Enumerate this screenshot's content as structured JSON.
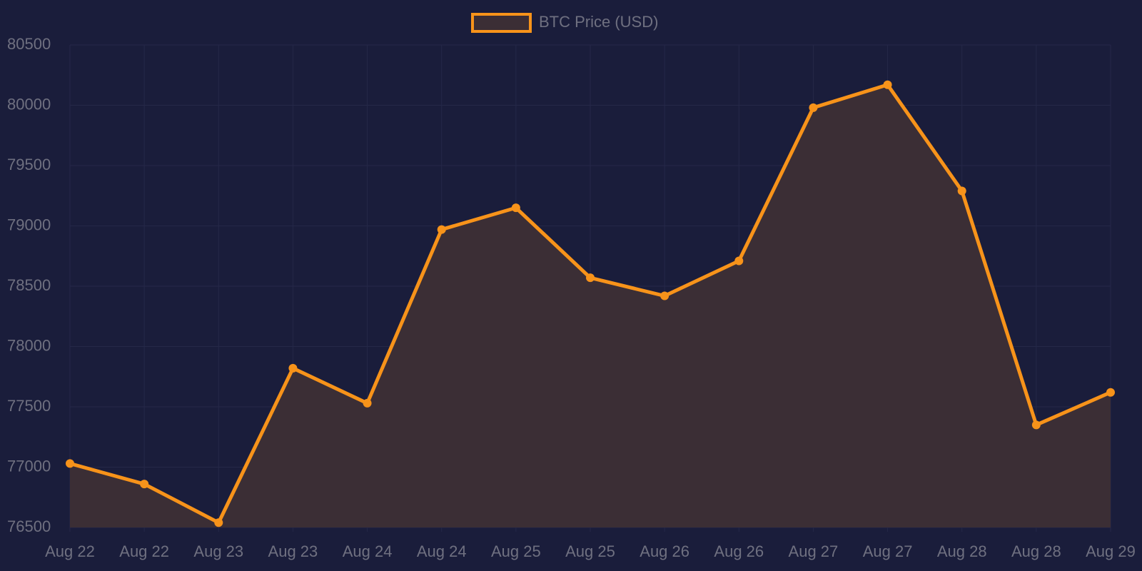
{
  "chart_data": {
    "type": "line",
    "categories": [
      "Aug 22",
      "Aug 22",
      "Aug 23",
      "Aug 23",
      "Aug 24",
      "Aug 24",
      "Aug 25",
      "Aug 25",
      "Aug 26",
      "Aug 26",
      "Aug 27",
      "Aug 27",
      "Aug 28",
      "Aug 28",
      "Aug 29"
    ],
    "series": [
      {
        "name": "BTC Price (USD)",
        "color": "#f7931a",
        "fill_color": "#3b2e35",
        "values": [
          77030,
          76860,
          76540,
          77820,
          77530,
          78970,
          79150,
          78570,
          78420,
          78710,
          79980,
          80170,
          79290,
          77350,
          77620
        ]
      }
    ],
    "ylim": [
      76500,
      80500
    ],
    "yticks": [
      76500,
      77000,
      77500,
      78000,
      78500,
      79000,
      79500,
      80000,
      80500
    ],
    "grid": true,
    "legend": "top"
  }
}
